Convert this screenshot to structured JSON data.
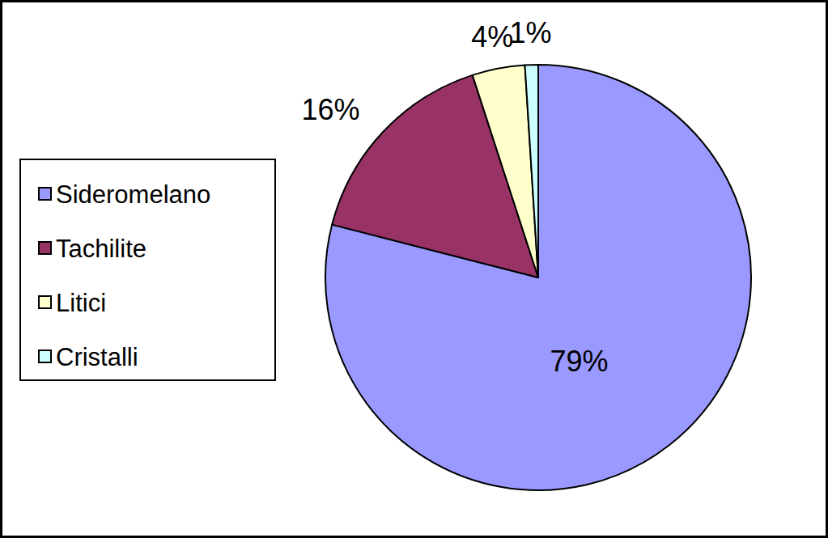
{
  "chart_data": {
    "type": "pie",
    "categories": [
      "Sideromelano",
      "Tachilite",
      "Litici",
      "Cristalli"
    ],
    "values": [
      79,
      16,
      4,
      1
    ],
    "value_labels": [
      "79%",
      "16%",
      "4%",
      "1%"
    ],
    "colors": [
      "#9999ff",
      "#993366",
      "#ffffcc",
      "#ccffff"
    ],
    "data_labels": true,
    "legend": "left"
  }
}
